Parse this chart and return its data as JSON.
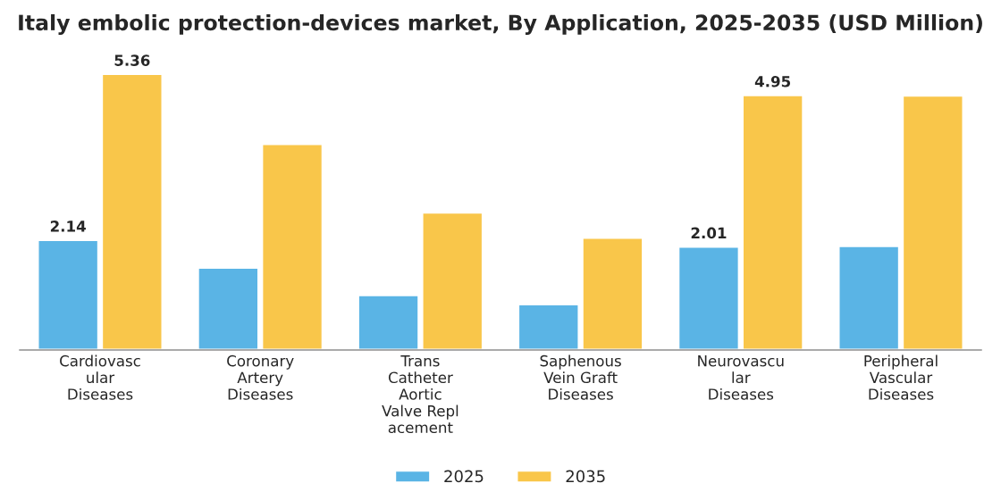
{
  "chart_data": {
    "type": "bar",
    "title": "Italy embolic protection-devices market, By Application, 2025-2035 (USD Million)",
    "categories": [
      "Cardiovasc\nular\nDiseases",
      "Coronary\nArtery\nDiseases",
      "Trans\nCatheter\nAortic\nValve Repl\nacement",
      "Saphenous\nVein Graft\nDiseases",
      "Neurovascu\nlar\nDiseases",
      "Peripheral\nVascular\nDiseases"
    ],
    "series": [
      {
        "name": "2025",
        "color": "#5ab4e5",
        "values": [
          2.14,
          1.6,
          1.07,
          0.89,
          2.01,
          2.02
        ],
        "value_labels": [
          "2.14",
          null,
          null,
          null,
          "2.01",
          null
        ]
      },
      {
        "name": "2035",
        "color": "#f9c64a",
        "values": [
          5.36,
          4.0,
          2.67,
          2.18,
          4.95,
          4.94
        ],
        "value_labels": [
          "5.36",
          null,
          null,
          null,
          "4.95",
          null
        ]
      }
    ],
    "tick_labels": "x",
    "grid": false,
    "legend": "bottom"
  }
}
